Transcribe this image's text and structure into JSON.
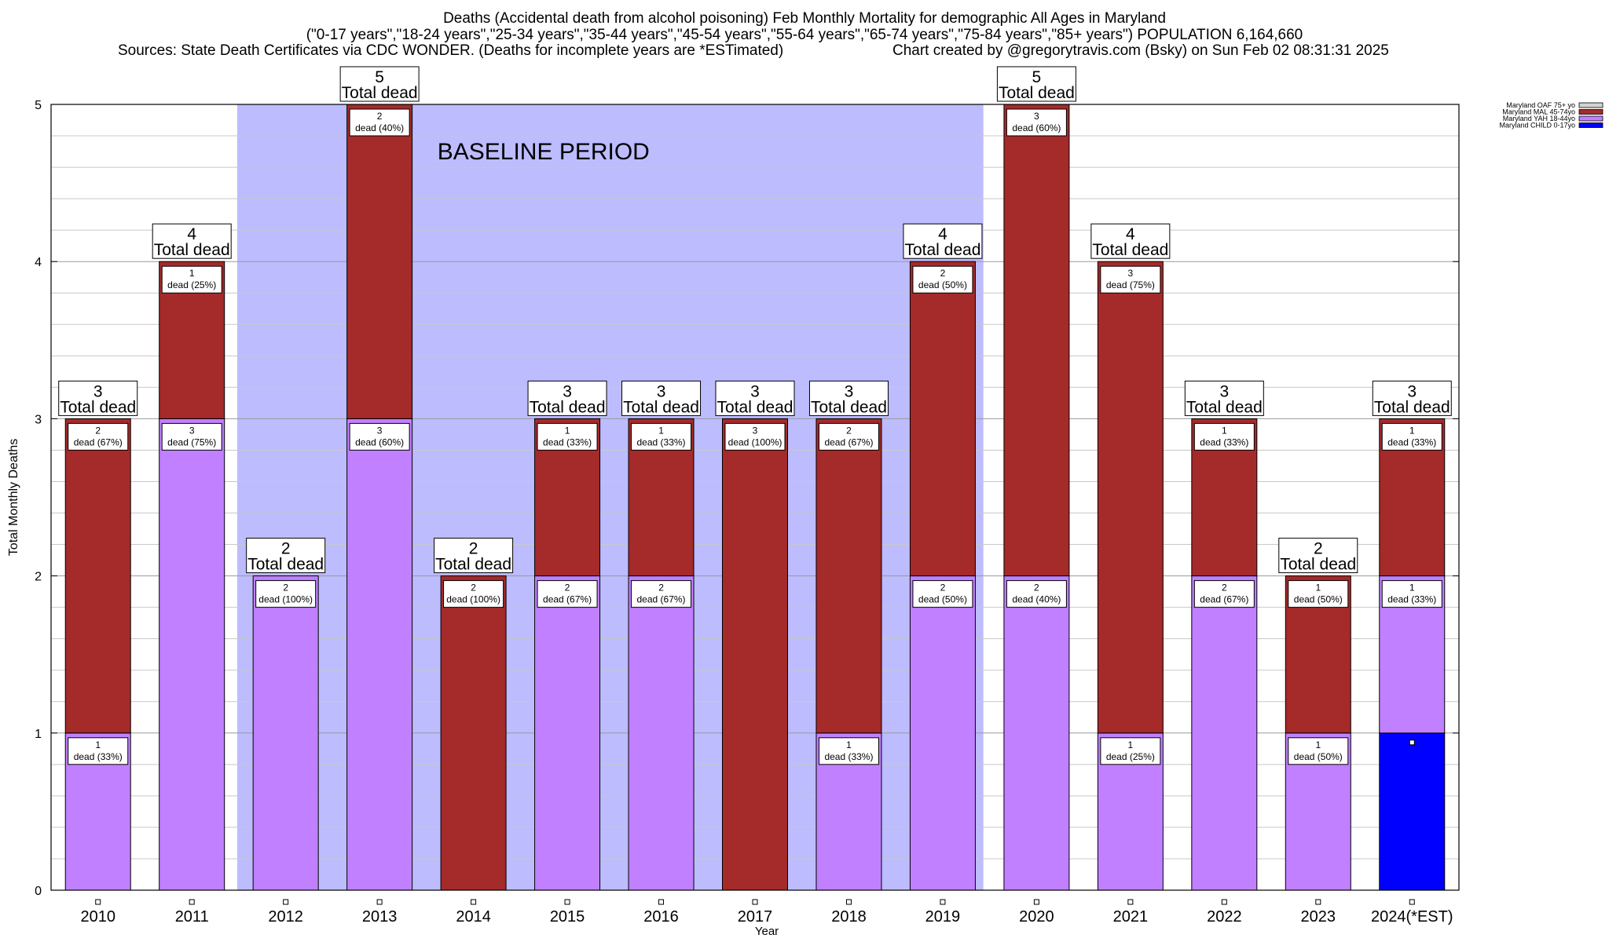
{
  "title_line1": "Deaths (Accidental death from alcohol poisoning) Feb Monthly Mortality for demographic All Ages in Maryland",
  "title_line2": "(\"0-17 years\",\"18-24 years\",\"25-34 years\",\"35-44 years\",\"45-54 years\",\"55-64 years\",\"65-74 years\",\"75-84 years\",\"85+ years\") POPULATION 6,164,660",
  "title_line3_left": "Sources: State Death Certificates via CDC WONDER. (Deaths for incomplete years are *ESTimated)",
  "title_line3_right": "Chart created by @gregorytravis.com (Bsky) on Sun Feb 02 08:31:31 2025",
  "chart_data": {
    "type": "bar",
    "stacked": true,
    "xlabel": "Year",
    "ylabel": "Total Monthly Deaths",
    "ylim": [
      0,
      5
    ],
    "yticks": [
      "0",
      "1",
      "2",
      "3",
      "4",
      "5"
    ],
    "grid": true,
    "legend_position": "top-right",
    "categories": [
      "2010",
      "2011",
      "2012",
      "2013",
      "2014",
      "2015",
      "2016",
      "2017",
      "2018",
      "2019",
      "2020",
      "2021",
      "2022",
      "2023",
      "2024(*EST)"
    ],
    "series": [
      {
        "name": "Maryland CHILD 0-17yo",
        "color": "#0000ff",
        "values": [
          0,
          0,
          0,
          0,
          0,
          0,
          0,
          0,
          0,
          0,
          0,
          0,
          0,
          0,
          1
        ]
      },
      {
        "name": "Maryland YAH 18-44yo",
        "color": "#c080ff",
        "values": [
          1,
          3,
          2,
          3,
          0,
          2,
          2,
          0,
          1,
          2,
          2,
          1,
          2,
          1,
          1
        ]
      },
      {
        "name": "Maryland MAL 45-74yo",
        "color": "#a52a2a",
        "values": [
          2,
          1,
          0,
          2,
          2,
          1,
          1,
          3,
          2,
          2,
          3,
          3,
          1,
          1,
          1
        ]
      },
      {
        "name": "Maryland OAF 75+ yo",
        "color": "#d3d3d3",
        "values": [
          0,
          0,
          0,
          0,
          0,
          0,
          0,
          0,
          0,
          0,
          0,
          0,
          0,
          0,
          0
        ]
      }
    ],
    "segment_labels": [
      [
        {
          "count": "1",
          "text": "dead (33%)"
        },
        {
          "count": "2",
          "text": "dead (67%)"
        }
      ],
      [
        {
          "count": "3",
          "text": "dead (75%)"
        },
        {
          "count": "1",
          "text": "dead (25%)"
        }
      ],
      [
        {
          "count": "2",
          "text": "dead (100%)"
        }
      ],
      [
        {
          "count": "3",
          "text": "dead (60%)"
        },
        {
          "count": "2",
          "text": "dead (40%)"
        }
      ],
      [
        {
          "count": "2",
          "text": "dead (100%)"
        }
      ],
      [
        {
          "count": "2",
          "text": "dead (67%)"
        },
        {
          "count": "1",
          "text": "dead (33%)"
        }
      ],
      [
        {
          "count": "2",
          "text": "dead (67%)"
        },
        {
          "count": "1",
          "text": "dead (33%)"
        }
      ],
      [
        {
          "count": "3",
          "text": "dead (100%)"
        }
      ],
      [
        {
          "count": "1",
          "text": "dead (33%)"
        },
        {
          "count": "2",
          "text": "dead (67%)"
        }
      ],
      [
        {
          "count": "2",
          "text": "dead (50%)"
        },
        {
          "count": "2",
          "text": "dead (50%)"
        }
      ],
      [
        {
          "count": "2",
          "text": "dead (40%)"
        },
        {
          "count": "3",
          "text": "dead (60%)"
        }
      ],
      [
        {
          "count": "1",
          "text": "dead (25%)"
        },
        {
          "count": "3",
          "text": "dead (75%)"
        }
      ],
      [
        {
          "count": "2",
          "text": "dead (67%)"
        },
        {
          "count": "1",
          "text": "dead (33%)"
        }
      ],
      [
        {
          "count": "1",
          "text": "dead (50%)"
        },
        {
          "count": "1",
          "text": "dead (50%)"
        }
      ],
      [
        {
          "count": "1",
          "text": "dead (33%)"
        },
        {
          "count": "1",
          "text": "dead (33%)"
        }
      ]
    ],
    "totals": [
      3,
      4,
      2,
      5,
      2,
      3,
      3,
      3,
      3,
      4,
      5,
      4,
      3,
      2,
      3
    ],
    "total_label_suffix": "Total dead",
    "baseline_period": {
      "label": "BASELINE PERIOD",
      "start": "2012",
      "end": "2019",
      "color": "#bcbcff"
    }
  }
}
